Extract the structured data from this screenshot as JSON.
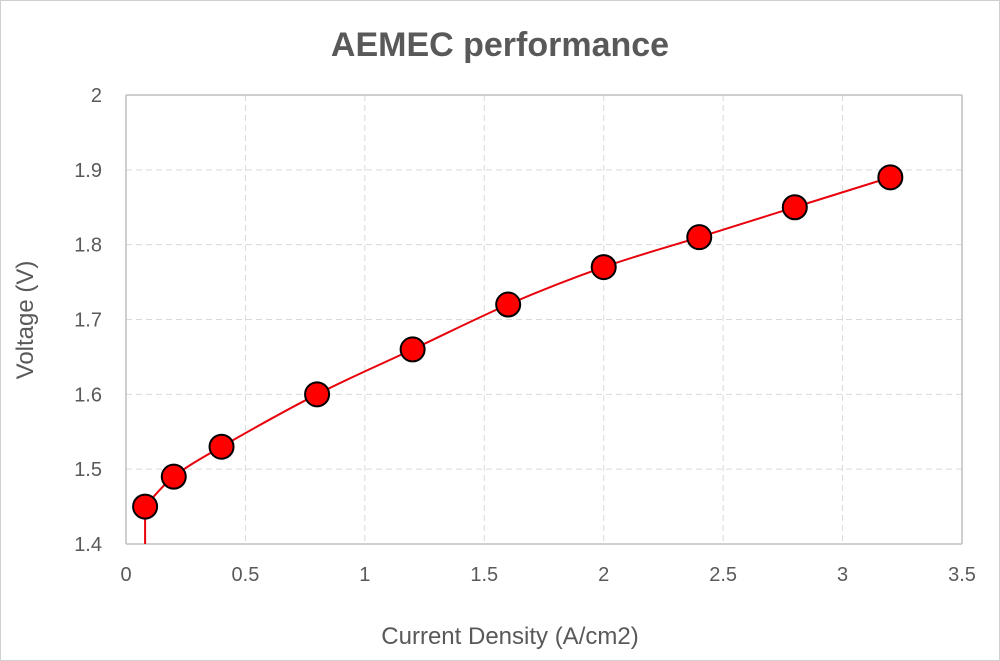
{
  "chart_data": {
    "type": "scatter",
    "title": "AEMEC performance",
    "xlabel": "Current Density (A/cm2)",
    "ylabel": "Voltage (V)",
    "xlim": [
      0,
      3.5
    ],
    "ylim": [
      1.4,
      2.0
    ],
    "xticks": [
      "0",
      "0.5",
      "1",
      "1.5",
      "2",
      "2.5",
      "3",
      "3.5"
    ],
    "yticks": [
      "1.4",
      "1.5",
      "1.6",
      "1.7",
      "1.8",
      "1.9",
      "2"
    ],
    "grid": true,
    "legend": "none",
    "series": [
      {
        "color": "#ff0000",
        "line_color": "#e8000b",
        "x": [
          0.08,
          0.2,
          0.4,
          0.8,
          1.2,
          1.6,
          2.0,
          2.4,
          2.8,
          3.2
        ],
        "y": [
          1.45,
          1.49,
          1.53,
          1.6,
          1.66,
          1.72,
          1.77,
          1.81,
          1.85,
          1.89
        ]
      }
    ]
  }
}
